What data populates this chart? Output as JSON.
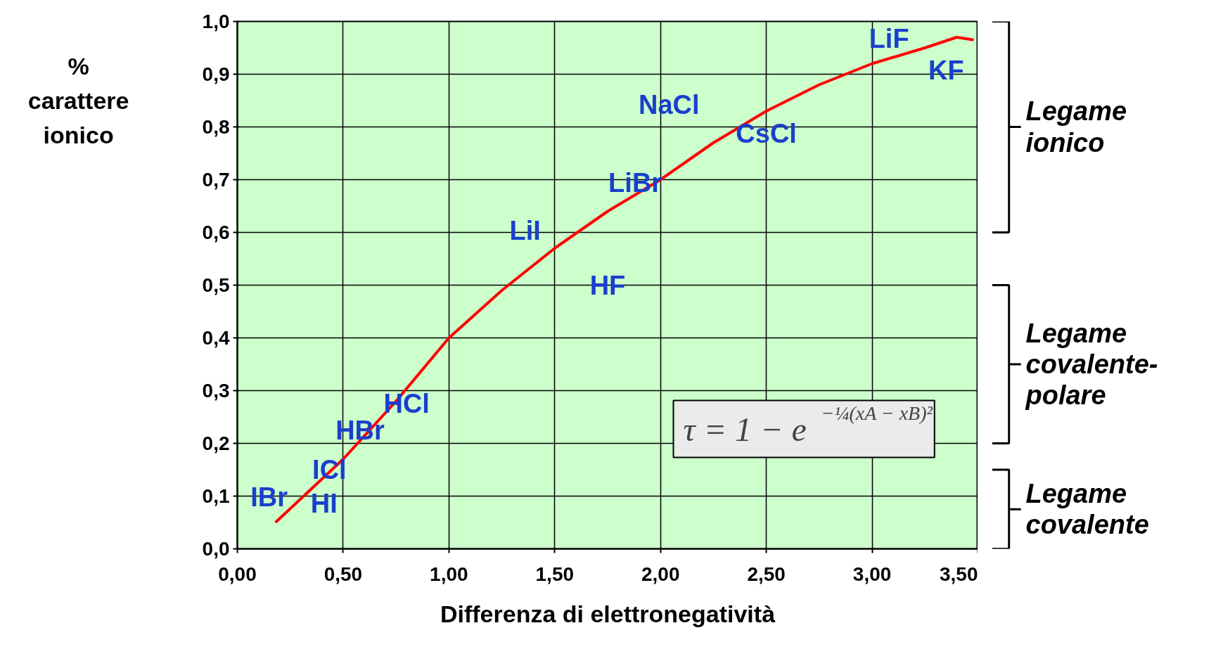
{
  "chart_data": {
    "type": "line",
    "xlabel": "Differenza di elettronegatività",
    "ylabel": "% carattere ionico",
    "x": [
      0.18,
      0.5,
      0.75,
      1.0,
      1.25,
      1.5,
      1.75,
      2.0,
      2.25,
      2.5,
      2.75,
      3.0,
      3.25,
      3.4,
      3.48
    ],
    "series": [
      {
        "color": "#ff0000",
        "values": [
          0.05,
          0.17,
          0.28,
          0.4,
          0.49,
          0.57,
          0.64,
          0.7,
          0.77,
          0.83,
          0.88,
          0.92,
          0.95,
          0.97,
          0.965
        ]
      }
    ],
    "xlim": [
      0,
      3.5
    ],
    "ylim": [
      0,
      1.0
    ],
    "xticks": [
      {
        "value": 0,
        "label": "0,00"
      },
      {
        "value": 0.5,
        "label": "0,50"
      },
      {
        "value": 1.0,
        "label": "1,00"
      },
      {
        "value": 1.5,
        "label": "1,50"
      },
      {
        "value": 2.0,
        "label": "2,00"
      },
      {
        "value": 2.5,
        "label": "2,50"
      },
      {
        "value": 3.0,
        "label": "3,00"
      },
      {
        "value": 3.5,
        "label": "3,50"
      }
    ],
    "yticks": [
      {
        "value": 0,
        "label": "0,0"
      },
      {
        "value": 0.1,
        "label": "0,1"
      },
      {
        "value": 0.2,
        "label": "0,2"
      },
      {
        "value": 0.3,
        "label": "0,3"
      },
      {
        "value": 0.4,
        "label": "0,4"
      },
      {
        "value": 0.5,
        "label": "0,5"
      },
      {
        "value": 0.6,
        "label": "0,6"
      },
      {
        "value": 0.7,
        "label": "0,7"
      },
      {
        "value": 0.8,
        "label": "0,8"
      },
      {
        "value": 0.9,
        "label": "0,9"
      },
      {
        "value": 1.0,
        "label": "1,0"
      }
    ],
    "grid": true,
    "marker": "none",
    "line_style": "solid",
    "annotations": [
      "LiF",
      "KF",
      "NaCl",
      "CsCl",
      "LiBr",
      "LiI",
      "HF",
      "HCl",
      "HBr",
      "ICl",
      "IBr",
      "HI",
      "τ = 1 − e$^{−¼(xA − xB)²}$",
      "Legame ionico",
      "Legame covalente-polare",
      "Legame covalente"
    ]
  }
}
